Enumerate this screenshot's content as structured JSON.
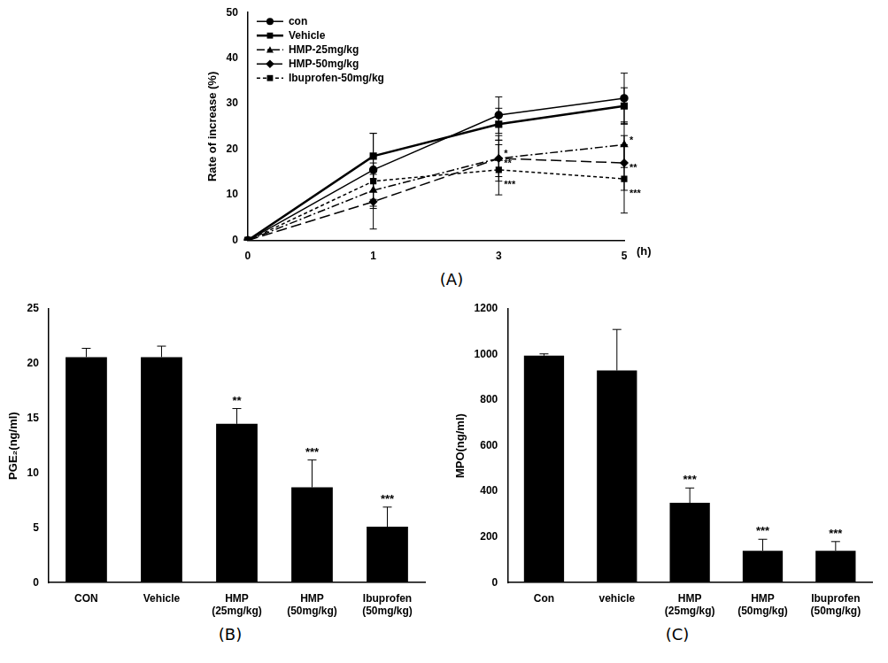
{
  "chart_data": [
    {
      "type": "line",
      "title": "(A)",
      "y_label": "Rate of increase (%)",
      "x_label": "(h)",
      "categories": [
        "0",
        "1",
        "3",
        "5"
      ],
      "ylim": [
        0,
        50
      ],
      "yticks": [
        0,
        10,
        20,
        30,
        40,
        50
      ],
      "grid": false,
      "legend": "upper left",
      "series": [
        {
          "name": "con",
          "color": "#000000",
          "marker": "circle",
          "line_style": "solid",
          "values": [
            0,
            15.5,
            27.5,
            31.2
          ],
          "errors": [
            0,
            8,
            4,
            5.5
          ],
          "annotations": [
            null,
            null,
            null,
            null
          ]
        },
        {
          "name": "Vehicle",
          "color": "#000000",
          "marker": "square",
          "line_style": "solid",
          "values": [
            0,
            18.5,
            25.5,
            29.5
          ],
          "errors": [
            0,
            5,
            3.5,
            4
          ],
          "annotations": [
            null,
            null,
            null,
            null
          ]
        },
        {
          "name": "HMP-25mg/kg",
          "color": "#000000",
          "marker": "triangle",
          "line_style": "dashdot",
          "values": [
            0,
            11,
            18,
            21
          ],
          "errors": [
            0,
            4,
            4,
            5
          ],
          "annotations": [
            null,
            null,
            "*",
            "*"
          ]
        },
        {
          "name": "HMP-50mg/kg",
          "color": "#000000",
          "marker": "diamond",
          "line_style": "longdash",
          "values": [
            0,
            8.5,
            18,
            17
          ],
          "errors": [
            0,
            6,
            5,
            6
          ],
          "annotations": [
            null,
            null,
            "**",
            "**"
          ]
        },
        {
          "name": "Ibuprofen-50mg/kg",
          "color": "#000000",
          "marker": "square",
          "line_style": "dashed",
          "values": [
            0,
            13,
            15.5,
            13.5
          ],
          "errors": [
            0,
            4,
            5.5,
            7.5
          ],
          "annotations": [
            null,
            null,
            "***",
            "***"
          ]
        }
      ]
    },
    {
      "type": "bar",
      "title": "(B)",
      "y_label": "PGE₂(ng/ml)",
      "categories": [
        "CON",
        "Vehicle",
        [
          "HMP",
          "(25mg/kg)"
        ],
        [
          "HMP",
          "(50mg/kg)"
        ],
        [
          "Ibuprofen",
          "(50mg/kg)"
        ]
      ],
      "values": [
        20.6,
        20.6,
        14.5,
        8.7,
        5.1
      ],
      "errors": [
        0.8,
        1.0,
        1.4,
        2.5,
        1.8
      ],
      "annotations": [
        null,
        null,
        "**",
        "***",
        "***"
      ],
      "color": "#000000",
      "ylim": [
        0,
        25
      ],
      "yticks": [
        0,
        5,
        10,
        15,
        20,
        25
      ],
      "grid": false
    },
    {
      "type": "bar",
      "title": "(C)",
      "y_label": "MPO(ng/ml)",
      "categories": [
        "Con",
        "vehicle",
        [
          "HMP",
          "(25mg/kg)"
        ],
        [
          "HMP",
          "(50mg/kg)"
        ],
        [
          "Ibuprofen",
          "(50mg/kg)"
        ]
      ],
      "values": [
        995,
        930,
        350,
        140,
        140
      ],
      "errors": [
        8,
        180,
        65,
        50,
        40
      ],
      "annotations": [
        null,
        null,
        "***",
        "***",
        "***"
      ],
      "color": "#000000",
      "ylim": [
        0,
        1200
      ],
      "yticks": [
        0,
        200,
        400,
        600,
        800,
        1000,
        1200
      ],
      "grid": false
    }
  ]
}
